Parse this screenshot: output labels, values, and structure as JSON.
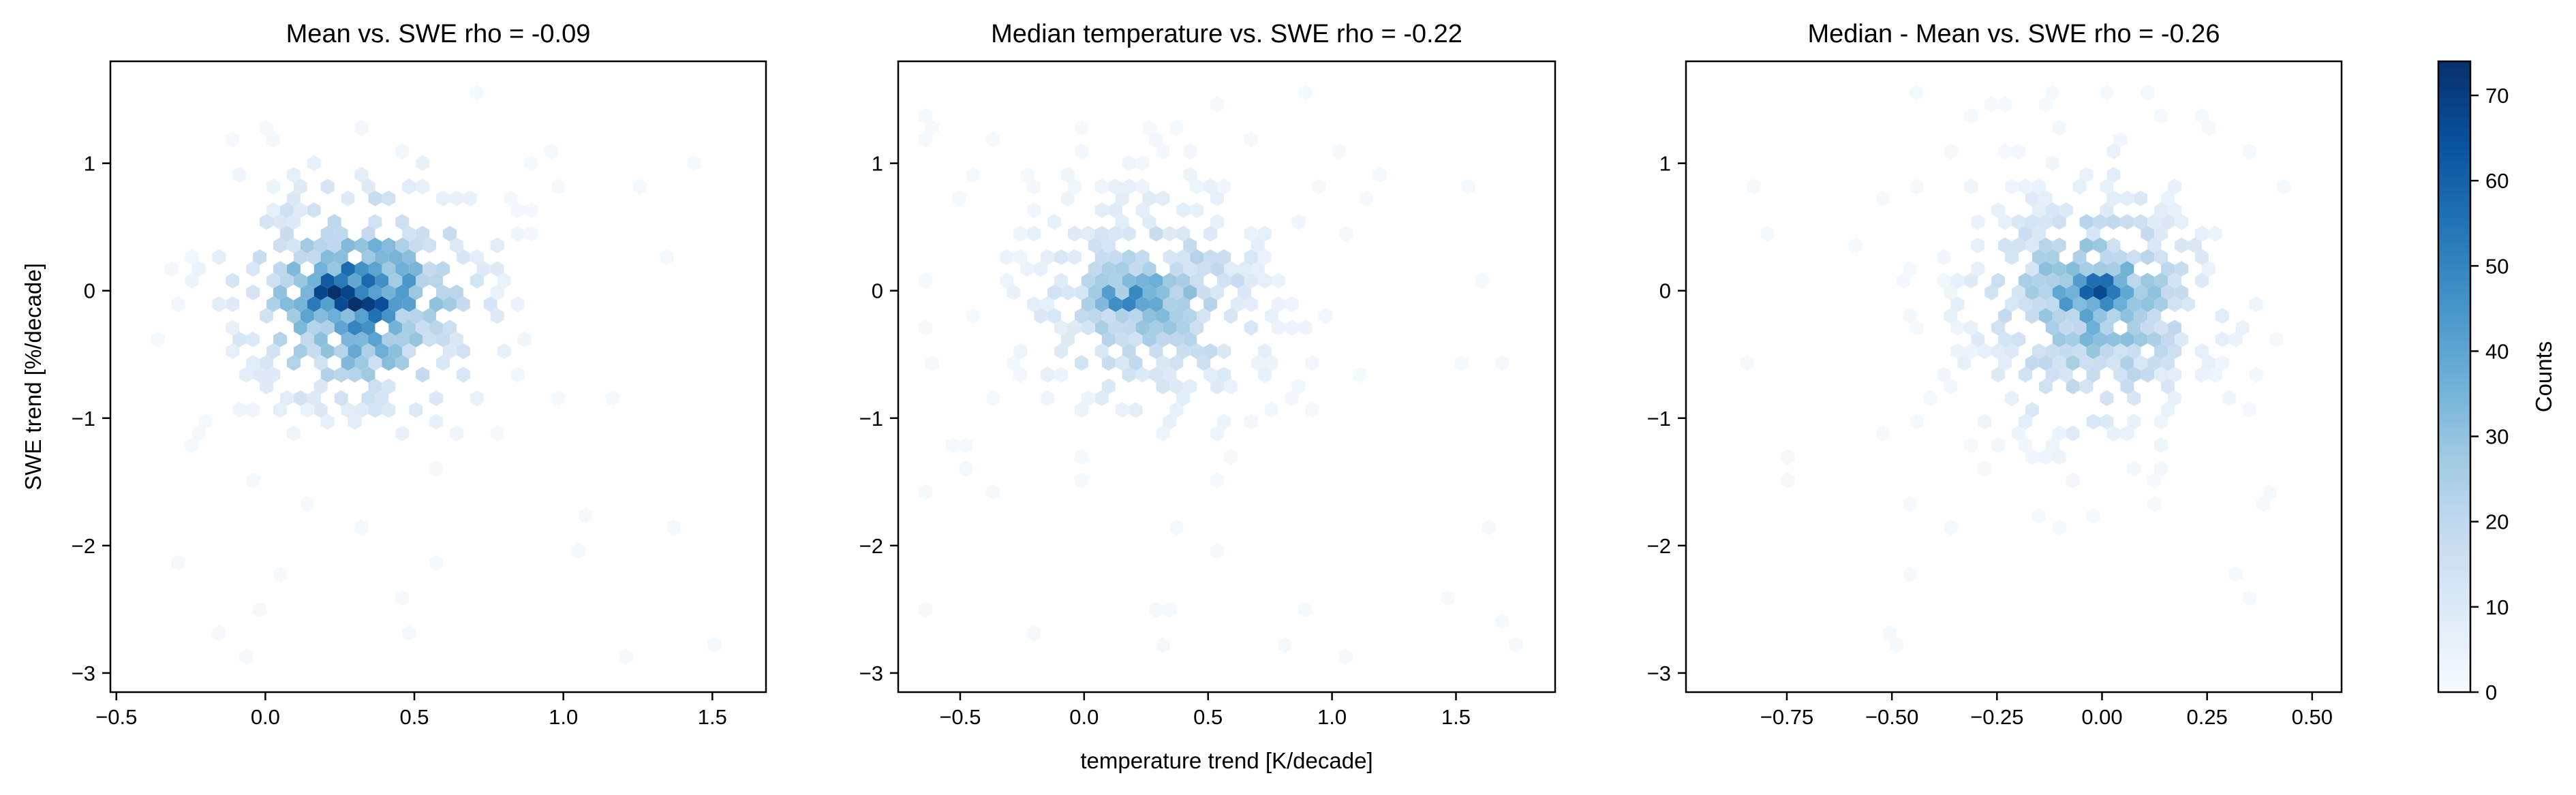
{
  "figure": {
    "ylabel": "SWE trend [%/decade]",
    "xlabel_shared": "temperature trend [K/decade]",
    "colorbar_label": "Counts",
    "colormap": [
      "#f7fbff",
      "#deebf7",
      "#c6dbef",
      "#9ecae1",
      "#6baed6",
      "#4292c6",
      "#2171b5",
      "#08519c",
      "#08306b"
    ]
  },
  "chart_data": [
    {
      "type": "heatmap",
      "subtype": "hexbin",
      "title": "Mean vs. SWE rho = -0.09",
      "xlim": [
        -0.52,
        1.68
      ],
      "ylim": [
        -3.15,
        1.8
      ],
      "xticks": [
        -0.5,
        0.0,
        0.5,
        1.0,
        1.5
      ],
      "xticklabels": [
        "−0.5",
        "0.0",
        "0.5",
        "1.0",
        "1.5"
      ],
      "yticks": [
        1,
        0,
        -1,
        -2,
        -3
      ],
      "yticklabels": [
        "1",
        "0",
        "−1",
        "−2",
        "−3"
      ],
      "cluster": {
        "center_x": 0.32,
        "center_y": -0.05,
        "spread_x": 0.26,
        "spread_y": 0.55,
        "x_extent": [
          -0.42,
          1.62
        ],
        "y_extent": [
          -2.95,
          1.6
        ],
        "peak_x": 0.28,
        "peak_y": -0.03,
        "peak_count": 74
      }
    },
    {
      "type": "heatmap",
      "subtype": "hexbin",
      "title": "Median temperature vs. SWE rho = -0.22",
      "xlim": [
        -0.75,
        1.9
      ],
      "ylim": [
        -3.15,
        1.8
      ],
      "xticks": [
        -0.5,
        0.0,
        0.5,
        1.0,
        1.5
      ],
      "xticklabels": [
        "−0.5",
        "0.0",
        "0.5",
        "1.0",
        "1.5"
      ],
      "yticks": [
        1,
        0,
        -1,
        -2,
        -3
      ],
      "yticklabels": [
        "1",
        "0",
        "−1",
        "−2",
        "−3"
      ],
      "cluster": {
        "center_x": 0.28,
        "center_y": -0.08,
        "spread_x": 0.32,
        "spread_y": 0.55,
        "x_extent": [
          -0.65,
          1.75
        ],
        "y_extent": [
          -2.95,
          1.6
        ],
        "peak_x": 0.2,
        "peak_y": -0.05,
        "peak_count": 45
      }
    },
    {
      "type": "heatmap",
      "subtype": "hexbin",
      "title": "Median - Mean vs. SWE rho = -0.26",
      "xlim": [
        -0.99,
        0.57
      ],
      "ylim": [
        -3.15,
        1.8
      ],
      "xticks": [
        -0.75,
        -0.5,
        -0.25,
        0.0,
        0.25,
        0.5
      ],
      "xticklabels": [
        "−0.75",
        "−0.50",
        "−0.25",
        "0.00",
        "0.25",
        "0.50"
      ],
      "yticks": [
        1,
        0,
        -1,
        -2,
        -3
      ],
      "yticklabels": [
        "1",
        "0",
        "−1",
        "−2",
        "−3"
      ],
      "cluster": {
        "center_x": -0.02,
        "center_y": -0.1,
        "spread_x": 0.18,
        "spread_y": 0.6,
        "x_extent": [
          -0.92,
          0.48
        ],
        "y_extent": [
          -2.95,
          1.6
        ],
        "peak_x": -0.02,
        "peak_y": 0.0,
        "peak_count": 55
      }
    }
  ],
  "colorbar": {
    "range": [
      0,
      74
    ],
    "ticks": [
      0,
      10,
      20,
      30,
      40,
      50,
      60,
      70
    ],
    "ticklabels": [
      "0",
      "10",
      "20",
      "30",
      "40",
      "50",
      "60",
      "70"
    ]
  }
}
